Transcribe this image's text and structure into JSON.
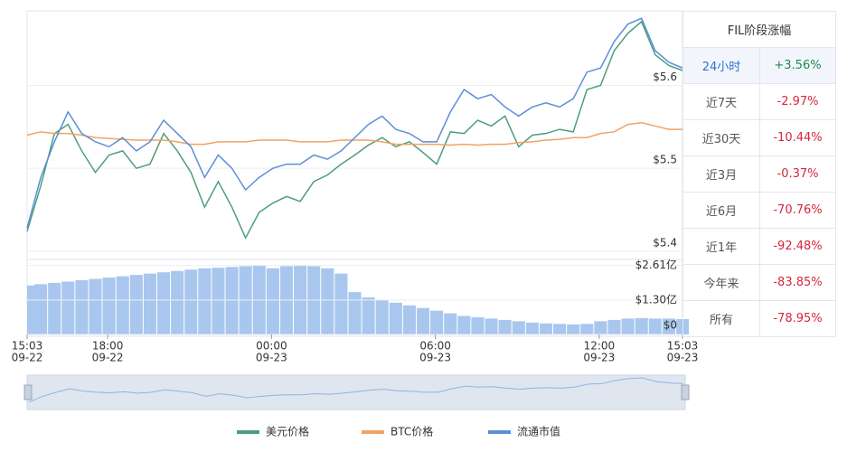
{
  "chart_data": {
    "type": "line",
    "x": [
      "09-22 15:03",
      "09-22 15:33",
      "09-22 16:03",
      "09-22 16:33",
      "09-22 17:03",
      "09-22 17:33",
      "09-22 18:03",
      "09-22 18:33",
      "09-22 19:03",
      "09-22 19:33",
      "09-22 20:03",
      "09-22 20:33",
      "09-22 21:03",
      "09-22 21:33",
      "09-22 22:03",
      "09-22 22:33",
      "09-22 23:03",
      "09-22 23:33",
      "09-23 00:03",
      "09-23 00:33",
      "09-23 01:03",
      "09-23 01:33",
      "09-23 02:03",
      "09-23 02:33",
      "09-23 03:03",
      "09-23 03:33",
      "09-23 04:03",
      "09-23 04:33",
      "09-23 05:03",
      "09-23 05:33",
      "09-23 06:03",
      "09-23 06:33",
      "09-23 07:03",
      "09-23 07:33",
      "09-23 08:03",
      "09-23 08:33",
      "09-23 09:03",
      "09-23 09:33",
      "09-23 10:03",
      "09-23 10:33",
      "09-23 11:03",
      "09-23 11:33",
      "09-23 12:03",
      "09-23 12:33",
      "09-23 13:03",
      "09-23 13:33",
      "09-23 14:03",
      "09-23 14:33",
      "09-23 15:03"
    ],
    "xticks": [
      {
        "time": "15:03",
        "date": "09-22"
      },
      {
        "time": "18:00",
        "date": "09-22"
      },
      {
        "time": "00:00",
        "date": "09-23"
      },
      {
        "time": "06:00",
        "date": "09-23"
      },
      {
        "time": "12:00",
        "date": "09-23"
      },
      {
        "time": "15:03",
        "date": "09-23"
      }
    ],
    "ylim": [
      5.39,
      5.69
    ],
    "yticks": [
      {
        "value": 5.4,
        "label": "$5.4"
      },
      {
        "value": 5.5,
        "label": "$5.5"
      },
      {
        "value": 5.6,
        "label": "$5.6"
      }
    ],
    "series": [
      {
        "name": "美元价格",
        "color": "#4e9d7e",
        "values": [
          5.424,
          5.479,
          5.542,
          5.553,
          5.521,
          5.495,
          5.516,
          5.521,
          5.5,
          5.505,
          5.542,
          5.521,
          5.495,
          5.453,
          5.484,
          5.453,
          5.416,
          5.447,
          5.458,
          5.466,
          5.46,
          5.484,
          5.492,
          5.505,
          5.516,
          5.528,
          5.537,
          5.526,
          5.532,
          5.519,
          5.505,
          5.544,
          5.542,
          5.558,
          5.551,
          5.563,
          5.526,
          5.54,
          5.542,
          5.547,
          5.544,
          5.595,
          5.6,
          5.642,
          5.663,
          5.677,
          5.637,
          5.624,
          5.618
        ]
      },
      {
        "name": "BTC价格",
        "color": "#f2a262",
        "values": [
          5.54,
          5.544,
          5.542,
          5.542,
          5.54,
          5.537,
          5.536,
          5.535,
          5.534,
          5.534,
          5.534,
          5.532,
          5.529,
          5.529,
          5.532,
          5.532,
          5.532,
          5.534,
          5.534,
          5.534,
          5.532,
          5.532,
          5.532,
          5.534,
          5.534,
          5.534,
          5.532,
          5.529,
          5.529,
          5.529,
          5.529,
          5.528,
          5.529,
          5.528,
          5.529,
          5.529,
          5.531,
          5.532,
          5.534,
          5.535,
          5.537,
          5.537,
          5.542,
          5.544,
          5.553,
          5.555,
          5.551,
          5.547,
          5.547
        ]
      },
      {
        "name": "流通市值",
        "color": "#5b8fd8",
        "values": [
          5.428,
          5.489,
          5.532,
          5.568,
          5.542,
          5.532,
          5.526,
          5.537,
          5.521,
          5.532,
          5.558,
          5.542,
          5.526,
          5.489,
          5.516,
          5.5,
          5.474,
          5.489,
          5.5,
          5.505,
          5.505,
          5.516,
          5.511,
          5.521,
          5.537,
          5.553,
          5.563,
          5.547,
          5.542,
          5.532,
          5.532,
          5.568,
          5.595,
          5.584,
          5.589,
          5.574,
          5.563,
          5.574,
          5.579,
          5.574,
          5.584,
          5.616,
          5.621,
          5.653,
          5.674,
          5.681,
          5.642,
          5.628,
          5.621
        ]
      }
    ],
    "volume": {
      "type": "bar",
      "color": "#a9c7ee",
      "values": [
        1.85,
        1.9,
        1.95,
        2.0,
        2.05,
        2.1,
        2.15,
        2.2,
        2.25,
        2.3,
        2.35,
        2.4,
        2.45,
        2.5,
        2.52,
        2.55,
        2.58,
        2.6,
        2.5,
        2.58,
        2.61,
        2.58,
        2.5,
        2.3,
        1.6,
        1.4,
        1.3,
        1.2,
        1.1,
        1.0,
        0.9,
        0.8,
        0.7,
        0.65,
        0.6,
        0.55,
        0.5,
        0.45,
        0.42,
        0.4,
        0.38,
        0.4,
        0.5,
        0.55,
        0.6,
        0.62,
        0.6,
        0.6,
        0.58
      ],
      "ylim": [
        0,
        2.8
      ],
      "yticks": [
        {
          "value": 0,
          "label": "$0"
        },
        {
          "value": 1.3,
          "label": "$1.30亿"
        },
        {
          "value": 2.61,
          "label": "$2.61亿"
        }
      ]
    }
  },
  "table": {
    "title": "FIL阶段涨幅",
    "rows": [
      [
        "24小时",
        "+3.56%"
      ],
      [
        "近7天",
        "-2.97%"
      ],
      [
        "近30天",
        "-10.44%"
      ],
      [
        "近3月",
        "-0.37%"
      ],
      [
        "近6月",
        "-70.76%"
      ],
      [
        "近1年",
        "-92.48%"
      ],
      [
        "今年来",
        "-83.85%"
      ],
      [
        "所有",
        "-78.95%"
      ]
    ]
  }
}
